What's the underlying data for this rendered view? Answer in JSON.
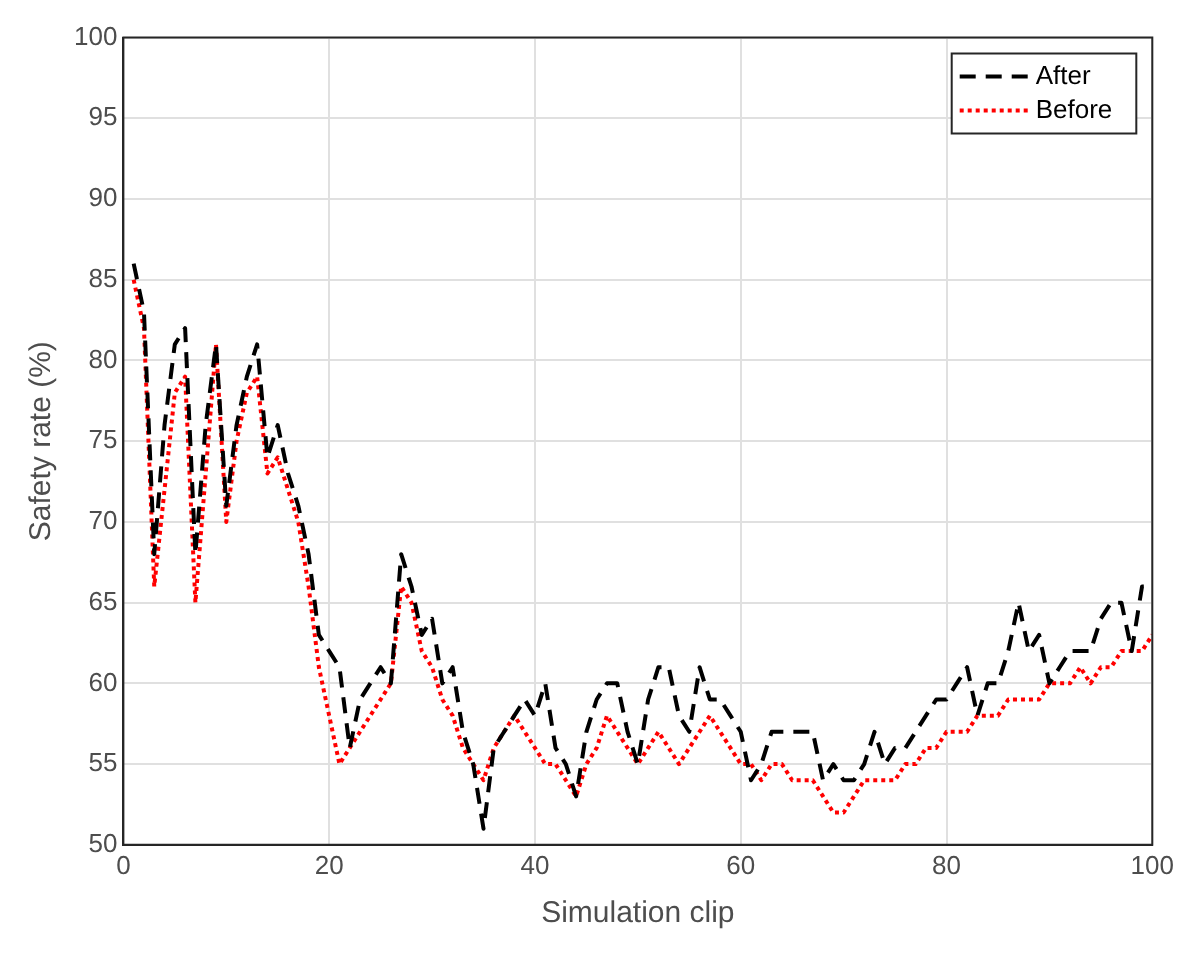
{
  "chart_data": {
    "type": "line",
    "xlabel": "Simulation clip",
    "ylabel": "Safety rate (%)",
    "x": [
      1,
      2,
      3,
      4,
      5,
      6,
      7,
      8,
      9,
      10,
      11,
      12,
      13,
      14,
      15,
      16,
      17,
      18,
      19,
      20,
      21,
      22,
      23,
      24,
      25,
      26,
      27,
      28,
      29,
      30,
      31,
      32,
      33,
      34,
      35,
      36,
      37,
      38,
      39,
      40,
      41,
      42,
      43,
      44,
      45,
      46,
      47,
      48,
      49,
      50,
      51,
      52,
      53,
      54,
      55,
      56,
      57,
      58,
      59,
      60,
      61,
      62,
      63,
      64,
      65,
      66,
      67,
      68,
      69,
      70,
      71,
      72,
      73,
      74,
      75,
      76,
      77,
      78,
      79,
      80,
      81,
      82,
      83,
      84,
      85,
      86,
      87,
      88,
      89,
      90,
      91,
      92,
      93,
      94,
      95,
      96,
      97,
      98,
      99,
      100
    ],
    "series": [
      {
        "name": "After",
        "color": "#000000",
        "line_style": "dashed",
        "values": [
          86,
          83,
          68,
          76,
          81,
          82,
          68,
          76,
          81,
          71,
          76,
          79,
          81,
          74,
          76,
          73,
          71,
          68,
          63,
          62,
          61,
          56,
          59,
          60,
          61,
          60,
          68,
          66,
          63,
          64,
          60,
          61,
          57,
          55,
          51,
          56,
          57,
          58,
          59,
          58,
          60,
          56,
          55,
          53,
          57,
          59,
          60,
          60,
          57,
          55,
          59,
          61,
          61,
          58,
          57,
          61,
          59,
          59,
          58,
          57,
          54,
          55,
          57,
          57,
          57,
          57,
          57,
          54,
          55,
          54,
          54,
          55,
          57,
          55,
          56,
          56,
          57,
          58,
          59,
          59,
          60,
          61,
          58,
          60,
          60,
          62,
          65,
          62,
          63,
          60,
          61,
          62,
          62,
          62,
          64,
          65,
          65,
          62,
          66,
          66
        ]
      },
      {
        "name": "Before",
        "color": "#ff0000",
        "line_style": "dotted",
        "values": [
          85,
          82,
          66,
          72,
          78,
          79,
          65,
          73,
          81,
          70,
          75,
          78,
          79,
          73,
          74,
          72,
          70,
          66,
          61,
          58,
          55,
          56,
          57,
          58,
          59,
          60,
          66,
          65,
          62,
          61,
          59,
          58,
          56,
          55,
          54,
          56,
          57,
          58,
          57,
          56,
          55,
          55,
          54,
          53,
          55,
          56,
          58,
          57,
          56,
          55,
          56,
          57,
          56,
          55,
          56,
          57,
          58,
          57,
          56,
          55,
          55,
          54,
          55,
          55,
          54,
          54,
          54,
          53,
          52,
          52,
          53,
          54,
          54,
          54,
          54,
          55,
          55,
          56,
          56,
          57,
          57,
          57,
          58,
          58,
          58,
          59,
          59,
          59,
          59,
          60,
          60,
          60,
          61,
          60,
          61,
          61,
          62,
          62,
          62,
          63
        ]
      }
    ],
    "xlim": [
      0,
      100
    ],
    "xticks": [
      0,
      20,
      40,
      60,
      80,
      100
    ],
    "ylim": [
      50,
      100
    ],
    "yticks": [
      50,
      55,
      60,
      65,
      70,
      75,
      80,
      85,
      90,
      95,
      100
    ],
    "grid": true,
    "legend": "top right",
    "marker": "none"
  }
}
